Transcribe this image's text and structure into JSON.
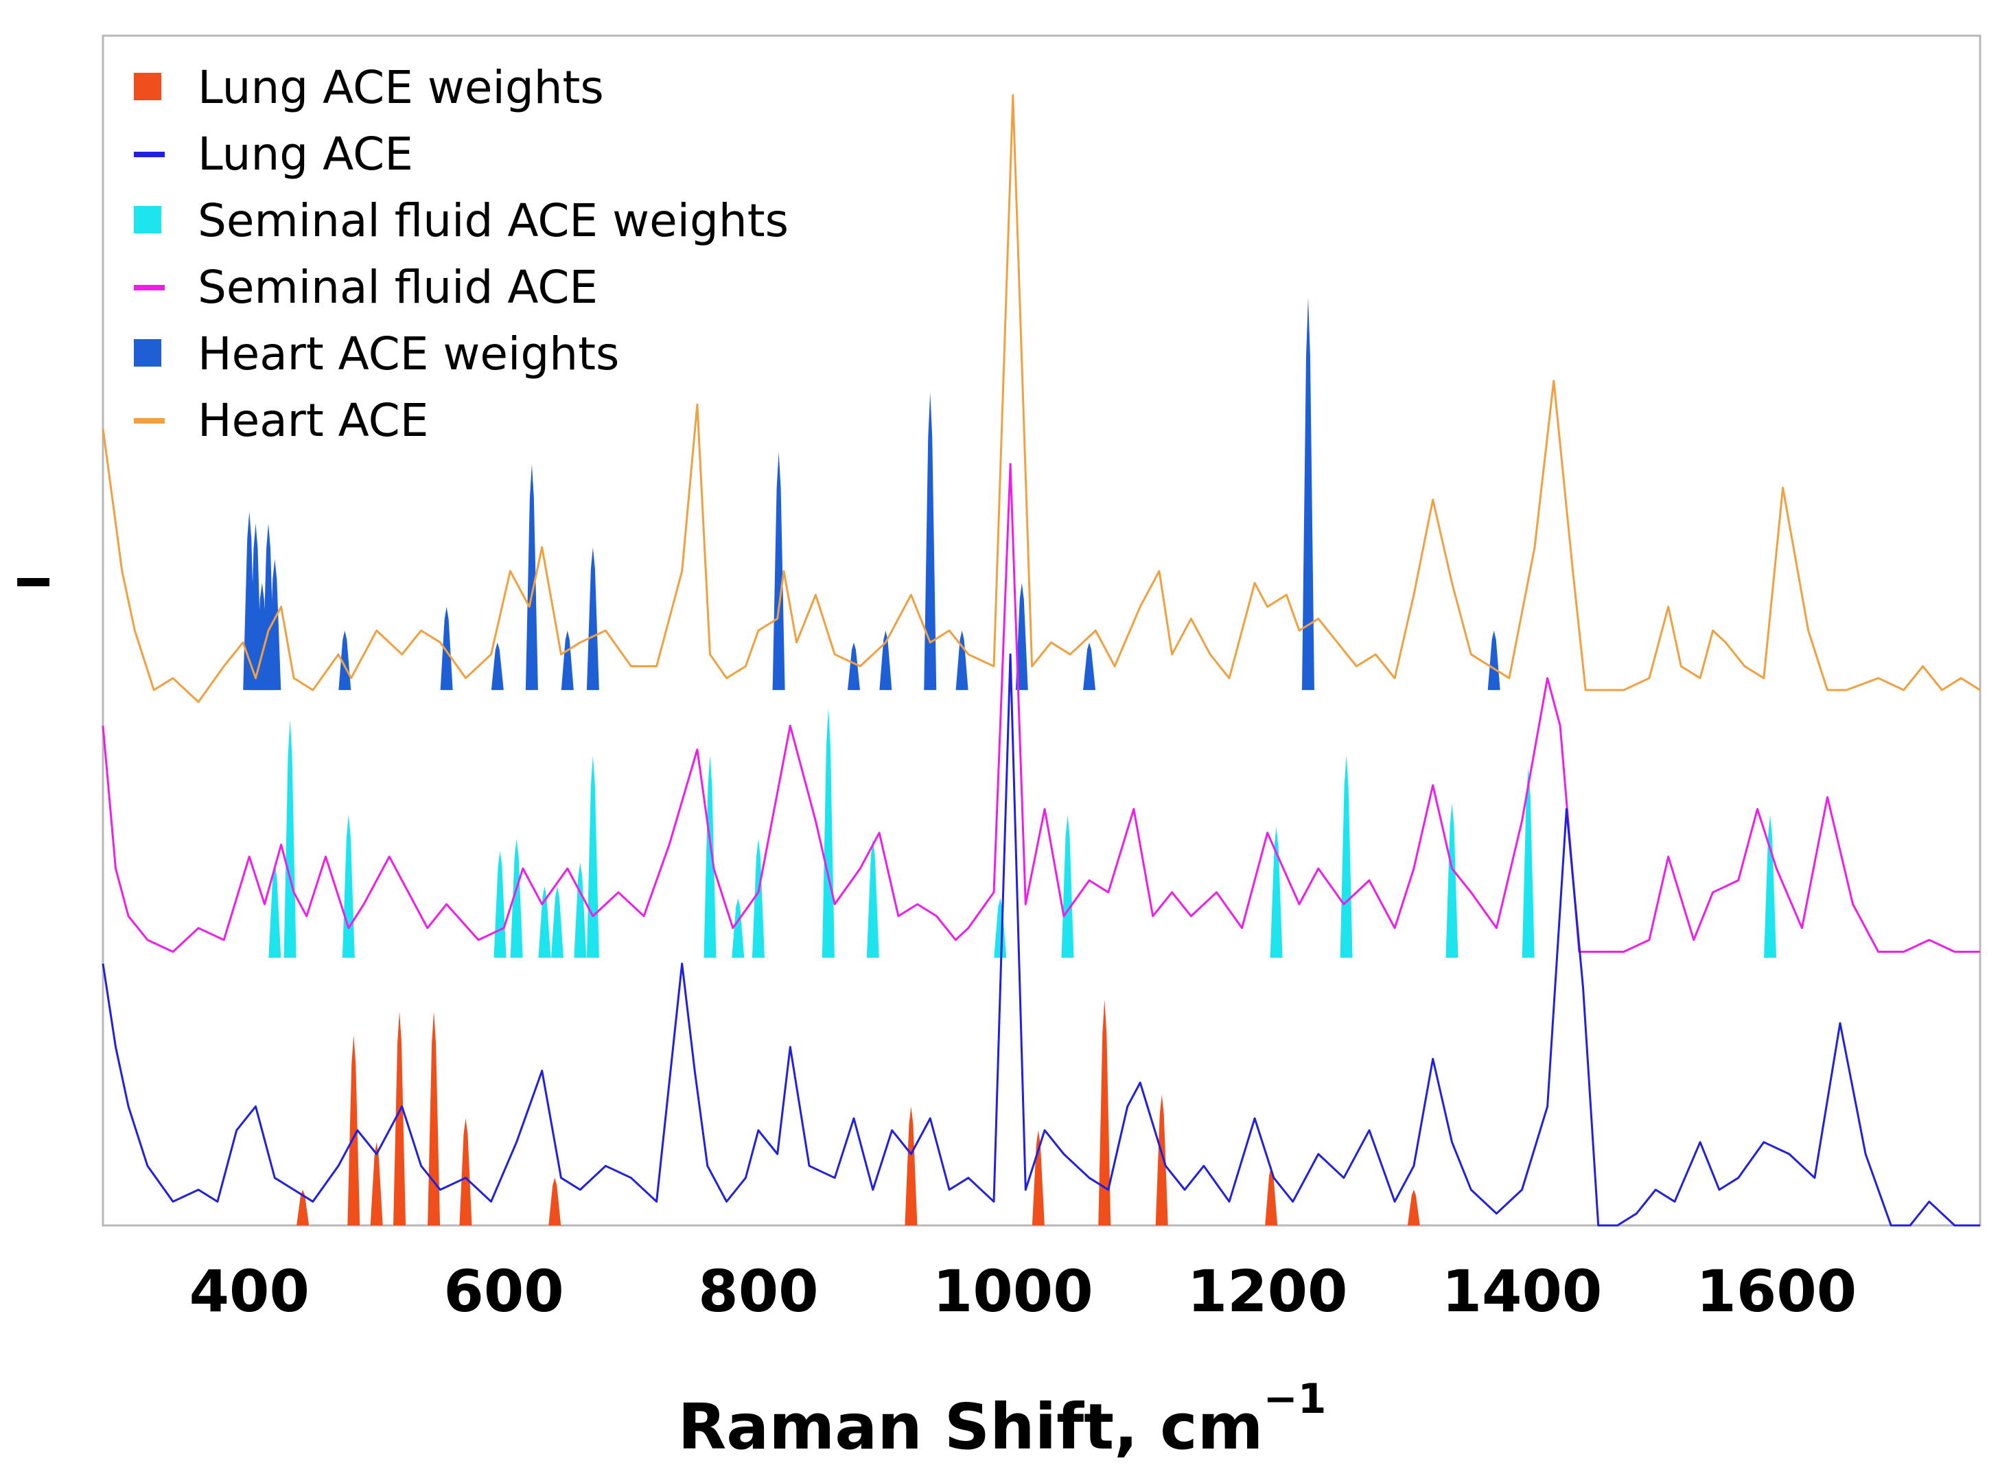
{
  "chart_data": {
    "type": "line",
    "title": "",
    "xlabel": "Raman Shift, cm",
    "xlabel_superscript": "−1",
    "ylabel": "I",
    "xlim": [
      285,
      1760
    ],
    "ylim": [
      0,
      1
    ],
    "xticks": [
      400,
      600,
      800,
      1000,
      1200,
      1400,
      1600
    ],
    "grid": false,
    "legend_position": "top-left",
    "legend": [
      {
        "label": "Lung ACE weights",
        "kind": "bar",
        "color": "#f04e1a"
      },
      {
        "label": "Lung ACE",
        "kind": "line",
        "color": "#2020e0"
      },
      {
        "label": "Seminal fluid ACE weights",
        "kind": "bar",
        "color": "#1ee4ee"
      },
      {
        "label": "Seminal fluid ACE",
        "kind": "line",
        "color": "#ee1ee8"
      },
      {
        "label": "Heart ACE weights",
        "kind": "bar",
        "color": "#1f5fd6"
      },
      {
        "label": "Heart ACE",
        "kind": "line",
        "color": "#f0a040"
      }
    ],
    "series": [
      {
        "name": "Heart ACE",
        "color": "#f0a040",
        "baseline": 0.45,
        "x": [
          285,
          300,
          310,
          325,
          340,
          360,
          380,
          395,
          405,
          415,
          425,
          435,
          450,
          470,
          480,
          500,
          520,
          535,
          550,
          570,
          590,
          605,
          620,
          630,
          645,
          660,
          680,
          700,
          720,
          740,
          752,
          762,
          775,
          790,
          800,
          815,
          820,
          830,
          845,
          860,
          880,
          900,
          920,
          935,
          950,
          965,
          985,
          1000,
          1015,
          1030,
          1045,
          1065,
          1080,
          1100,
          1115,
          1125,
          1140,
          1155,
          1170,
          1190,
          1200,
          1215,
          1225,
          1240,
          1255,
          1270,
          1285,
          1300,
          1315,
          1330,
          1345,
          1360,
          1375,
          1390,
          1410,
          1425,
          1440,
          1450,
          1465,
          1480,
          1500,
          1515,
          1525,
          1540,
          1550,
          1560,
          1575,
          1590,
          1605,
          1625,
          1640,
          1655,
          1680,
          1700,
          1715,
          1730,
          1745,
          1760
        ],
        "y": [
          0.67,
          0.55,
          0.5,
          0.45,
          0.46,
          0.44,
          0.47,
          0.49,
          0.46,
          0.5,
          0.52,
          0.46,
          0.45,
          0.48,
          0.46,
          0.5,
          0.48,
          0.5,
          0.49,
          0.46,
          0.48,
          0.55,
          0.52,
          0.57,
          0.48,
          0.49,
          0.5,
          0.47,
          0.47,
          0.55,
          0.69,
          0.48,
          0.46,
          0.47,
          0.5,
          0.51,
          0.55,
          0.49,
          0.53,
          0.48,
          0.47,
          0.49,
          0.53,
          0.49,
          0.5,
          0.48,
          0.47,
          0.95,
          0.47,
          0.49,
          0.48,
          0.5,
          0.47,
          0.52,
          0.55,
          0.48,
          0.51,
          0.48,
          0.46,
          0.54,
          0.52,
          0.53,
          0.5,
          0.51,
          0.49,
          0.47,
          0.48,
          0.46,
          0.53,
          0.61,
          0.54,
          0.48,
          0.47,
          0.46,
          0.57,
          0.71,
          0.55,
          0.45,
          0.45,
          0.45,
          0.46,
          0.52,
          0.47,
          0.46,
          0.5,
          0.49,
          0.47,
          0.46,
          0.62,
          0.5,
          0.45,
          0.45,
          0.46,
          0.45,
          0.47,
          0.45,
          0.46,
          0.45
        ]
      },
      {
        "name": "Seminal fluid ACE",
        "color": "#ee1ee8",
        "baseline": 0.225,
        "x": [
          285,
          295,
          305,
          320,
          340,
          360,
          380,
          400,
          412,
          425,
          435,
          445,
          460,
          478,
          490,
          510,
          525,
          540,
          555,
          580,
          600,
          615,
          630,
          650,
          670,
          690,
          710,
          730,
          752,
          765,
          780,
          800,
          825,
          845,
          860,
          880,
          895,
          910,
          925,
          940,
          955,
          965,
          985,
          998,
          1010,
          1025,
          1040,
          1060,
          1075,
          1095,
          1110,
          1125,
          1140,
          1160,
          1180,
          1200,
          1225,
          1240,
          1260,
          1280,
          1300,
          1315,
          1330,
          1345,
          1360,
          1380,
          1400,
          1420,
          1430,
          1445,
          1460,
          1480,
          1500,
          1515,
          1535,
          1550,
          1570,
          1585,
          1600,
          1620,
          1640,
          1660,
          1680,
          1700,
          1720,
          1740,
          1760
        ],
        "y": [
          0.42,
          0.3,
          0.26,
          0.24,
          0.23,
          0.25,
          0.24,
          0.31,
          0.27,
          0.32,
          0.28,
          0.26,
          0.31,
          0.25,
          0.27,
          0.31,
          0.28,
          0.25,
          0.27,
          0.24,
          0.25,
          0.3,
          0.27,
          0.3,
          0.26,
          0.28,
          0.26,
          0.32,
          0.4,
          0.3,
          0.25,
          0.28,
          0.42,
          0.34,
          0.27,
          0.3,
          0.33,
          0.26,
          0.27,
          0.26,
          0.24,
          0.25,
          0.28,
          0.64,
          0.27,
          0.35,
          0.26,
          0.29,
          0.28,
          0.35,
          0.26,
          0.28,
          0.26,
          0.28,
          0.25,
          0.33,
          0.27,
          0.3,
          0.27,
          0.29,
          0.25,
          0.3,
          0.37,
          0.3,
          0.28,
          0.25,
          0.34,
          0.46,
          0.42,
          0.23,
          0.23,
          0.23,
          0.24,
          0.31,
          0.24,
          0.28,
          0.29,
          0.35,
          0.3,
          0.25,
          0.36,
          0.27,
          0.23,
          0.23,
          0.24,
          0.23,
          0.23
        ]
      },
      {
        "name": "Lung ACE",
        "color": "#2020e0",
        "baseline": 0.0,
        "x": [
          285,
          295,
          305,
          320,
          340,
          360,
          375,
          390,
          405,
          420,
          435,
          450,
          470,
          485,
          500,
          520,
          535,
          550,
          570,
          590,
          610,
          630,
          645,
          660,
          680,
          700,
          720,
          740,
          750,
          760,
          775,
          790,
          800,
          815,
          825,
          840,
          860,
          875,
          890,
          905,
          920,
          935,
          950,
          965,
          985,
          998,
          1010,
          1025,
          1040,
          1060,
          1075,
          1090,
          1100,
          1120,
          1135,
          1150,
          1170,
          1190,
          1205,
          1220,
          1240,
          1260,
          1280,
          1300,
          1315,
          1330,
          1345,
          1360,
          1380,
          1400,
          1420,
          1435,
          1448,
          1460,
          1475,
          1490,
          1505,
          1520,
          1540,
          1555,
          1570,
          1590,
          1610,
          1630,
          1650,
          1670,
          1690,
          1705,
          1720,
          1740,
          1760
        ],
        "y": [
          0.22,
          0.15,
          0.1,
          0.05,
          0.02,
          0.03,
          0.02,
          0.08,
          0.1,
          0.04,
          0.03,
          0.02,
          0.05,
          0.08,
          0.06,
          0.1,
          0.05,
          0.03,
          0.04,
          0.02,
          0.07,
          0.13,
          0.04,
          0.03,
          0.05,
          0.04,
          0.02,
          0.22,
          0.13,
          0.05,
          0.02,
          0.04,
          0.08,
          0.06,
          0.15,
          0.05,
          0.04,
          0.09,
          0.03,
          0.08,
          0.06,
          0.09,
          0.03,
          0.04,
          0.02,
          0.48,
          0.03,
          0.08,
          0.06,
          0.04,
          0.03,
          0.1,
          0.12,
          0.05,
          0.03,
          0.05,
          0.02,
          0.09,
          0.04,
          0.02,
          0.06,
          0.04,
          0.08,
          0.02,
          0.05,
          0.14,
          0.07,
          0.03,
          0.01,
          0.03,
          0.1,
          0.35,
          0.2,
          0.0,
          0.0,
          0.01,
          0.03,
          0.02,
          0.07,
          0.03,
          0.04,
          0.07,
          0.06,
          0.04,
          0.17,
          0.06,
          0.0,
          0.0,
          0.02,
          0.0,
          0.0
        ]
      }
    ],
    "weights": [
      {
        "name": "Heart ACE weights",
        "color": "#1f5fd6",
        "baseline": 0.45,
        "x": [
          400,
          405,
          410,
          415,
          420,
          475,
          555,
          595,
          622,
          650,
          670,
          816,
          875,
          900,
          935,
          960,
          1007,
          1060,
          1232,
          1378
        ],
        "y": [
          0.15,
          0.14,
          0.09,
          0.14,
          0.11,
          0.05,
          0.07,
          0.04,
          0.19,
          0.05,
          0.12,
          0.2,
          0.04,
          0.05,
          0.25,
          0.05,
          0.09,
          0.04,
          0.33,
          0.05
        ]
      },
      {
        "name": "Seminal fluid ACE weights",
        "color": "#1ee4ee",
        "baseline": 0.225,
        "x": [
          420,
          432,
          478,
          597,
          610,
          632,
          642,
          660,
          670,
          762,
          784,
          800,
          855,
          890,
          990,
          1043,
          1207,
          1262,
          1345,
          1405,
          1595
        ],
        "y": [
          0.08,
          0.2,
          0.12,
          0.09,
          0.1,
          0.06,
          0.06,
          0.08,
          0.17,
          0.17,
          0.05,
          0.1,
          0.21,
          0.1,
          0.05,
          0.12,
          0.11,
          0.17,
          0.13,
          0.16,
          0.12
        ]
      },
      {
        "name": "Lung ACE weights",
        "color": "#f04e1a",
        "baseline": 0.0,
        "x": [
          442,
          482,
          500,
          518,
          545,
          570,
          640,
          920,
          1020,
          1072,
          1117,
          1203,
          1315
        ],
        "y": [
          0.03,
          0.16,
          0.07,
          0.18,
          0.18,
          0.09,
          0.04,
          0.1,
          0.08,
          0.19,
          0.11,
          0.05,
          0.03
        ]
      }
    ]
  }
}
